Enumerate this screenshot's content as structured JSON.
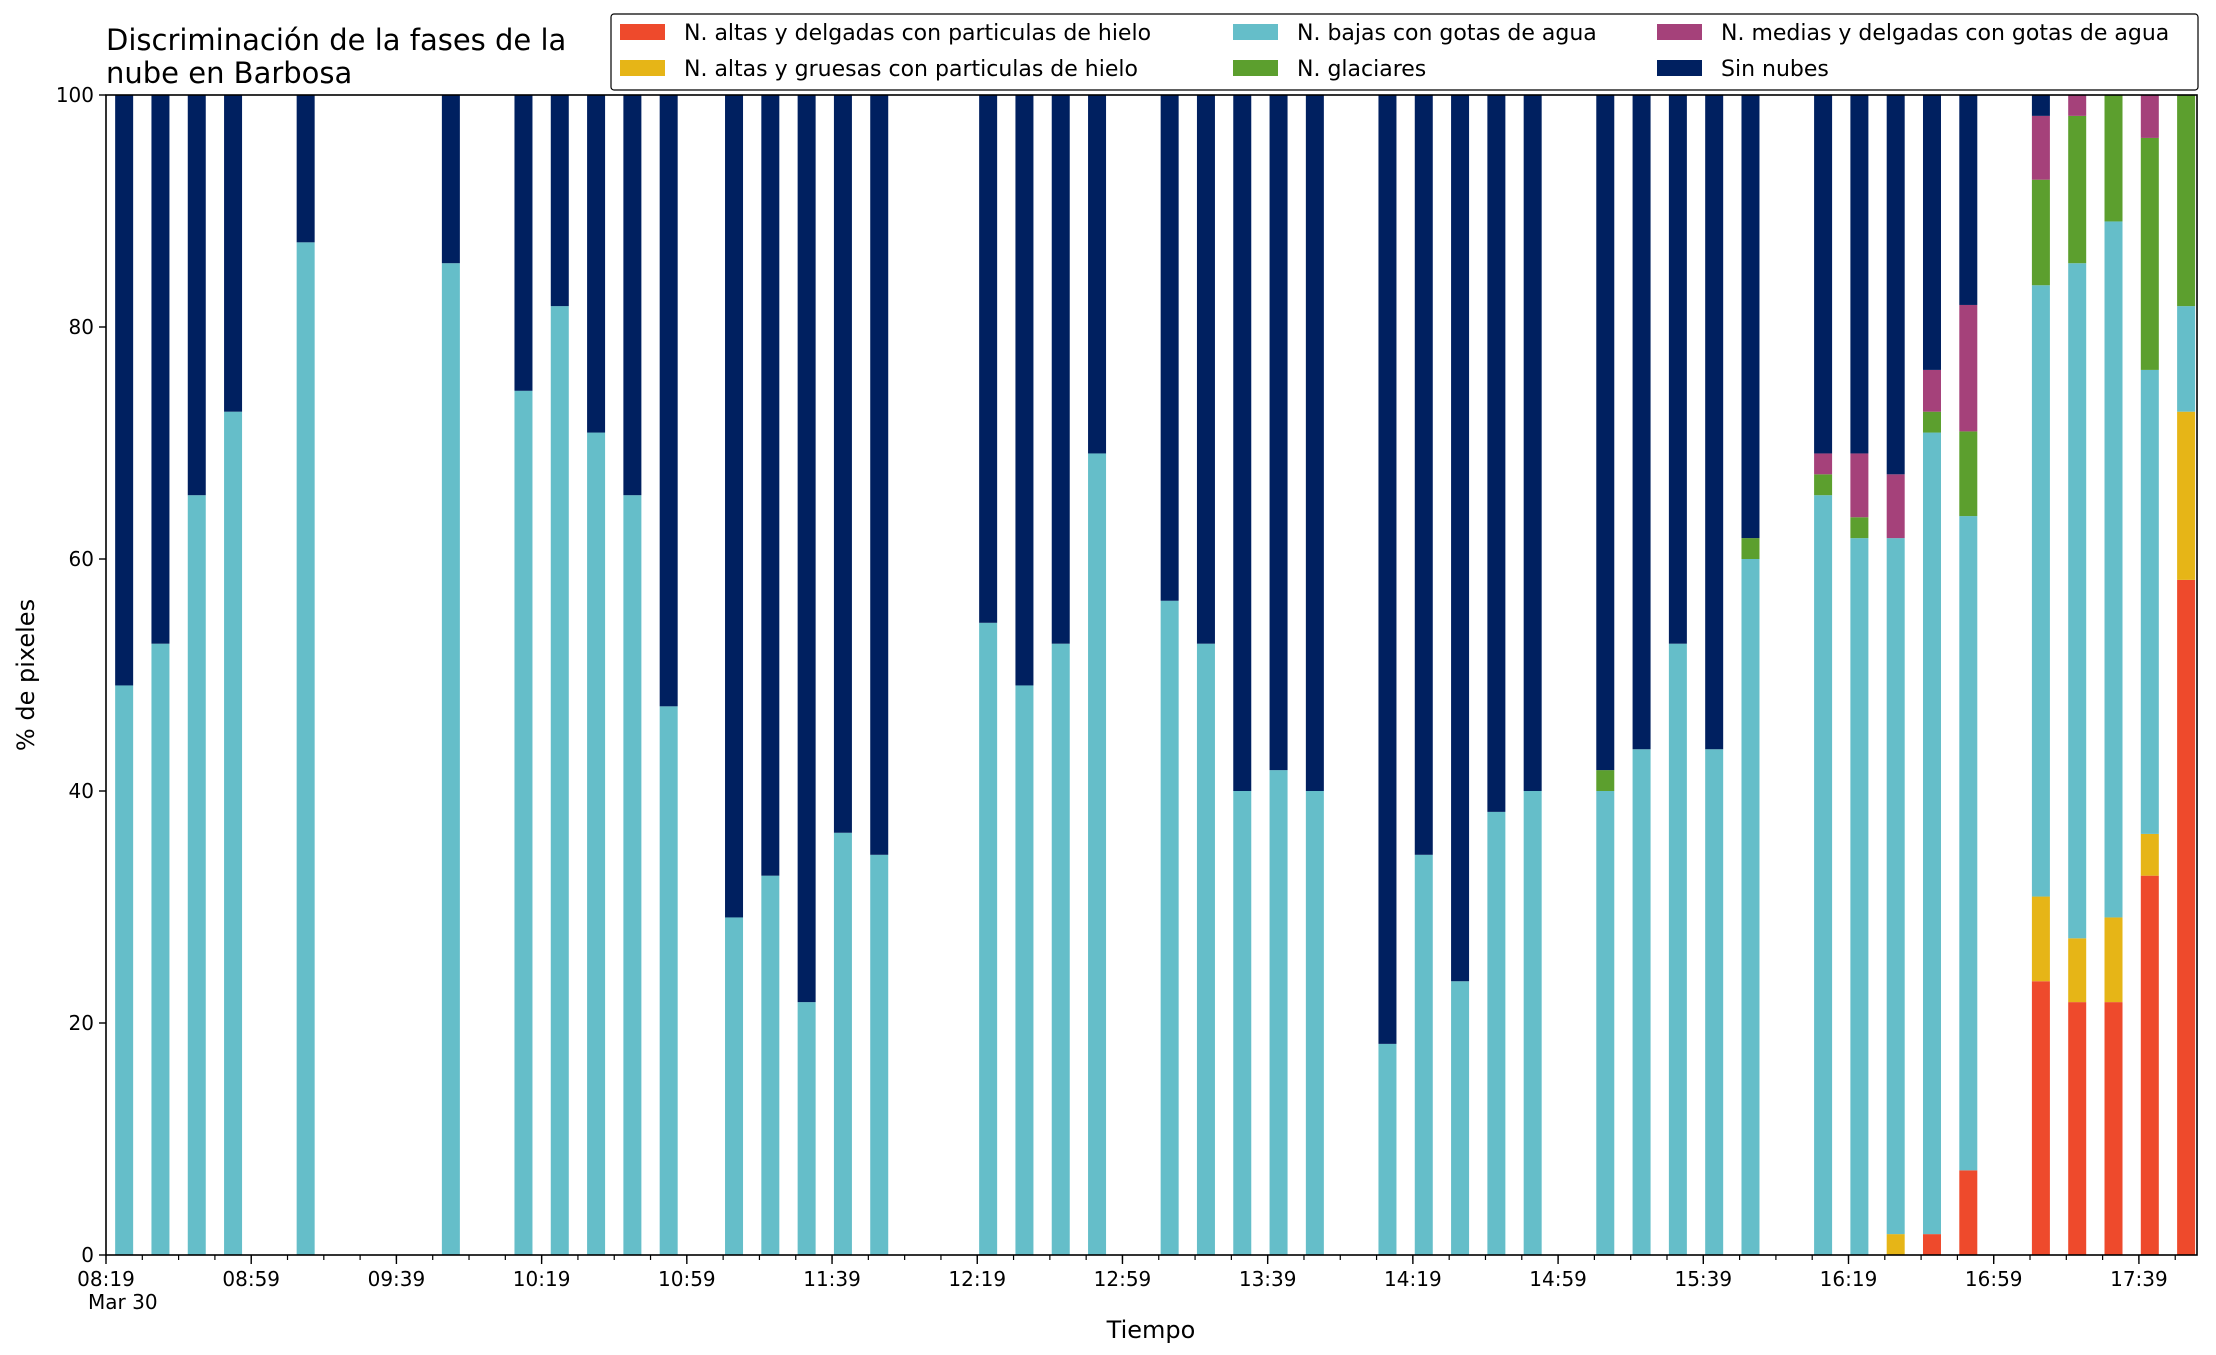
{
  "chart_data": {
    "type": "bar",
    "stacked": true,
    "title_line1": "Discriminación de la fases de la",
    "title_line2": "nube en Barbosa",
    "xlabel": "Tiempo",
    "ylabel": "% de pixeles",
    "ylim": [
      0,
      100
    ],
    "y_ticks": [
      0,
      20,
      40,
      60,
      80,
      100
    ],
    "x_range_minutes": [
      499,
      1075
    ],
    "date_label": "Mar 30",
    "x_tick_labels": [
      {
        "minute": 499,
        "label": "08:19"
      },
      {
        "minute": 539,
        "label": "08:59"
      },
      {
        "minute": 579,
        "label": "09:39"
      },
      {
        "minute": 619,
        "label": "10:19"
      },
      {
        "minute": 659,
        "label": "10:59"
      },
      {
        "minute": 699,
        "label": "11:39"
      },
      {
        "minute": 739,
        "label": "12:19"
      },
      {
        "minute": 779,
        "label": "12:59"
      },
      {
        "minute": 819,
        "label": "13:39"
      },
      {
        "minute": 859,
        "label": "14:19"
      },
      {
        "minute": 899,
        "label": "14:59"
      },
      {
        "minute": 939,
        "label": "15:39"
      },
      {
        "minute": 979,
        "label": "16:19"
      },
      {
        "minute": 1019,
        "label": "16:59"
      },
      {
        "minute": 1059,
        "label": "17:39"
      }
    ],
    "minor_tick_step_minutes": 10,
    "legend": {
      "placement": "top-right",
      "columns": 3
    },
    "series": [
      {
        "name": "N. altas y delgadas con particulas de hielo",
        "color": "#ee4a2c"
      },
      {
        "name": "N. altas y gruesas con particulas de hielo",
        "color": "#e6b517"
      },
      {
        "name": "N. bajas con gotas de agua",
        "color": "#65bec9"
      },
      {
        "name": "N. glaciares",
        "color": "#5c9f2e"
      },
      {
        "name": "N. medias y delgadas con gotas de agua",
        "color": "#a5417a"
      },
      {
        "name": "Sin nubes",
        "color": "#002060"
      }
    ],
    "bars": [
      {
        "time": "08:24",
        "values": [
          0,
          0,
          49.1,
          0,
          0,
          50.9
        ]
      },
      {
        "time": "08:34",
        "values": [
          0,
          0,
          52.7,
          0,
          0,
          47.3
        ]
      },
      {
        "time": "08:44",
        "values": [
          0,
          0,
          65.5,
          0,
          0,
          34.5
        ]
      },
      {
        "time": "08:54",
        "values": [
          0,
          0,
          72.7,
          0,
          0,
          27.3
        ]
      },
      {
        "time": "09:14",
        "values": [
          0,
          0,
          87.3,
          0,
          0,
          12.7
        ]
      },
      {
        "time": "09:54",
        "values": [
          0,
          0,
          85.5,
          0,
          0,
          14.5
        ]
      },
      {
        "time": "10:14",
        "values": [
          0,
          0,
          74.5,
          0,
          0,
          25.5
        ]
      },
      {
        "time": "10:24",
        "values": [
          0,
          0,
          81.8,
          0,
          0,
          18.2
        ]
      },
      {
        "time": "10:34",
        "values": [
          0,
          0,
          70.9,
          0,
          0,
          29.1
        ]
      },
      {
        "time": "10:44",
        "values": [
          0,
          0,
          65.5,
          0,
          0,
          34.5
        ]
      },
      {
        "time": "10:54",
        "values": [
          0,
          0,
          47.3,
          0,
          0,
          52.7
        ]
      },
      {
        "time": "11:12",
        "values": [
          0,
          0,
          29.1,
          0,
          0,
          70.9
        ]
      },
      {
        "time": "11:22",
        "values": [
          0,
          0,
          32.7,
          0,
          0,
          67.3
        ]
      },
      {
        "time": "11:32",
        "values": [
          0,
          0,
          21.8,
          0,
          0,
          78.2
        ]
      },
      {
        "time": "11:42",
        "values": [
          0,
          0,
          36.4,
          0,
          0,
          63.6
        ]
      },
      {
        "time": "11:52",
        "values": [
          0,
          0,
          34.5,
          0,
          0,
          65.5
        ]
      },
      {
        "time": "12:22",
        "values": [
          0,
          0,
          54.5,
          0,
          0,
          45.5
        ]
      },
      {
        "time": "12:32",
        "values": [
          0,
          0,
          49.1,
          0,
          0,
          50.9
        ]
      },
      {
        "time": "12:42",
        "values": [
          0,
          0,
          52.7,
          0,
          0,
          47.3
        ]
      },
      {
        "time": "12:52",
        "values": [
          0,
          0,
          69.1,
          0,
          0,
          30.9
        ]
      },
      {
        "time": "13:12",
        "values": [
          0,
          0,
          56.4,
          0,
          0,
          43.6
        ]
      },
      {
        "time": "13:22",
        "values": [
          0,
          0,
          52.7,
          0,
          0,
          47.3
        ]
      },
      {
        "time": "13:32",
        "values": [
          0,
          0,
          40.0,
          0,
          0,
          60.0
        ]
      },
      {
        "time": "13:42",
        "values": [
          0,
          0,
          41.8,
          0,
          0,
          58.2
        ]
      },
      {
        "time": "13:52",
        "values": [
          0,
          0,
          40.0,
          0,
          0,
          60.0
        ]
      },
      {
        "time": "14:12",
        "values": [
          0,
          0,
          18.2,
          0,
          0,
          81.8
        ]
      },
      {
        "time": "14:22",
        "values": [
          0,
          0,
          34.5,
          0,
          0,
          65.5
        ]
      },
      {
        "time": "14:32",
        "values": [
          0,
          0,
          23.6,
          0,
          0,
          76.4
        ]
      },
      {
        "time": "14:42",
        "values": [
          0,
          0,
          38.2,
          0,
          0,
          61.8
        ]
      },
      {
        "time": "14:52",
        "values": [
          0,
          0,
          40.0,
          0,
          0,
          60.0
        ]
      },
      {
        "time": "15:12",
        "values": [
          0,
          0,
          40.0,
          1.8,
          0,
          58.2
        ]
      },
      {
        "time": "15:22",
        "values": [
          0,
          0,
          43.6,
          0,
          0,
          56.4
        ]
      },
      {
        "time": "15:32",
        "values": [
          0,
          0,
          52.7,
          0,
          0,
          47.3
        ]
      },
      {
        "time": "15:42",
        "values": [
          0,
          0,
          43.6,
          0,
          0,
          56.4
        ]
      },
      {
        "time": "15:52",
        "values": [
          0,
          0,
          60.0,
          1.8,
          0,
          38.2
        ]
      },
      {
        "time": "16:12",
        "values": [
          0,
          0,
          65.5,
          1.8,
          1.8,
          30.9
        ]
      },
      {
        "time": "16:22",
        "values": [
          0,
          0,
          61.8,
          1.8,
          5.5,
          30.9
        ]
      },
      {
        "time": "16:32",
        "values": [
          0,
          1.8,
          60.0,
          0,
          5.5,
          32.7
        ]
      },
      {
        "time": "16:42",
        "values": [
          1.8,
          0,
          69.1,
          1.8,
          3.6,
          23.7
        ]
      },
      {
        "time": "16:52",
        "values": [
          7.3,
          0,
          56.4,
          7.3,
          10.9,
          18.1
        ]
      },
      {
        "time": "17:12",
        "values": [
          23.6,
          7.3,
          52.7,
          9.1,
          5.5,
          1.8
        ]
      },
      {
        "time": "17:22",
        "values": [
          21.8,
          5.5,
          58.2,
          12.7,
          1.8,
          0
        ]
      },
      {
        "time": "17:32",
        "values": [
          21.8,
          7.3,
          60.0,
          10.9,
          0,
          0
        ]
      },
      {
        "time": "17:42",
        "values": [
          32.7,
          3.6,
          40.0,
          20.0,
          3.7,
          0
        ]
      },
      {
        "time": "17:52",
        "values": [
          58.2,
          14.5,
          9.1,
          18.2,
          0,
          0
        ]
      }
    ]
  }
}
